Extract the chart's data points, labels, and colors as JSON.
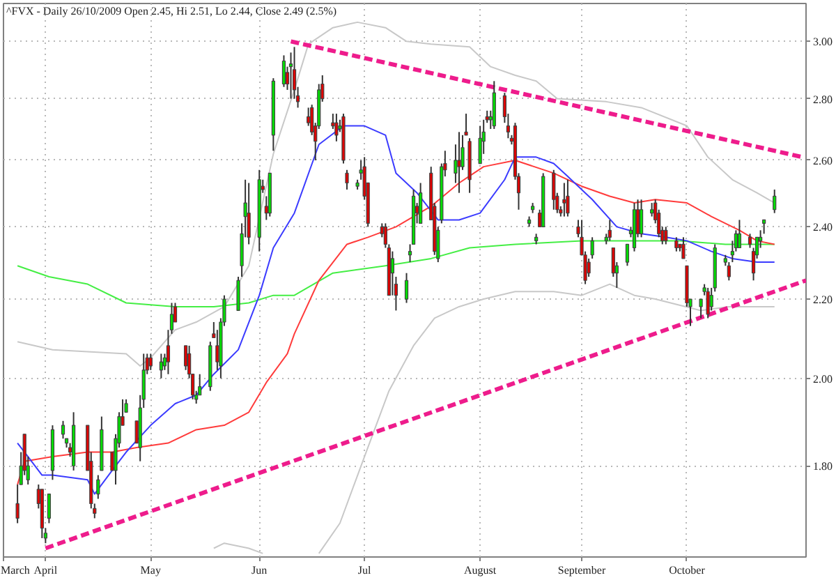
{
  "chart_data": {
    "type": "candlestick",
    "title": "^FVX - Daily 26/10/2009 Open 2.45, Hi 2.51, Lo 2.44, Close 2.49 (2.5%)",
    "x": [
      "2009-03-24",
      "2009-03-25",
      "2009-03-26",
      "2009-03-27",
      "2009-03-30",
      "2009-03-31",
      "2009-04-01",
      "2009-04-02",
      "2009-04-03",
      "2009-04-06",
      "2009-04-07",
      "2009-04-08",
      "2009-04-09",
      "2009-04-13",
      "2009-04-14",
      "2009-04-15",
      "2009-04-16",
      "2009-04-17",
      "2009-04-20",
      "2009-04-21",
      "2009-04-22",
      "2009-04-23",
      "2009-04-24",
      "2009-04-27",
      "2009-04-28",
      "2009-04-29",
      "2009-04-30",
      "2009-05-01",
      "2009-05-04",
      "2009-05-05",
      "2009-05-06",
      "2009-05-07",
      "2009-05-08",
      "2009-05-11",
      "2009-05-12",
      "2009-05-13",
      "2009-05-14",
      "2009-05-15",
      "2009-05-18",
      "2009-05-19",
      "2009-05-20",
      "2009-05-21",
      "2009-05-22",
      "2009-05-26",
      "2009-05-27",
      "2009-05-28",
      "2009-05-29",
      "2009-06-01",
      "2009-06-02",
      "2009-06-03",
      "2009-06-04",
      "2009-06-05",
      "2009-06-08",
      "2009-06-09",
      "2009-06-10",
      "2009-06-11",
      "2009-06-12",
      "2009-06-15",
      "2009-06-16",
      "2009-06-17",
      "2009-06-18",
      "2009-06-19",
      "2009-06-22",
      "2009-06-23",
      "2009-06-24",
      "2009-06-25",
      "2009-06-26",
      "2009-06-29",
      "2009-06-30",
      "2009-07-01",
      "2009-07-02",
      "2009-07-06",
      "2009-07-07",
      "2009-07-08",
      "2009-07-09",
      "2009-07-10",
      "2009-07-13",
      "2009-07-14",
      "2009-07-15",
      "2009-07-16",
      "2009-07-17",
      "2009-07-20",
      "2009-07-21",
      "2009-07-22",
      "2009-07-23",
      "2009-07-24",
      "2009-07-27",
      "2009-07-28",
      "2009-07-29",
      "2009-07-30",
      "2009-07-31",
      "2009-08-03",
      "2009-08-04",
      "2009-08-05",
      "2009-08-06",
      "2009-08-07",
      "2009-08-10",
      "2009-08-11",
      "2009-08-12",
      "2009-08-13",
      "2009-08-14",
      "2009-08-17",
      "2009-08-18",
      "2009-08-19",
      "2009-08-20",
      "2009-08-21",
      "2009-08-24",
      "2009-08-25",
      "2009-08-26",
      "2009-08-27",
      "2009-08-28",
      "2009-08-31",
      "2009-09-01",
      "2009-09-02",
      "2009-09-03",
      "2009-09-04",
      "2009-09-08",
      "2009-09-09",
      "2009-09-10",
      "2009-09-11",
      "2009-09-14",
      "2009-09-15",
      "2009-09-16",
      "2009-09-17",
      "2009-09-18",
      "2009-09-21",
      "2009-09-22",
      "2009-09-23",
      "2009-09-24",
      "2009-09-25",
      "2009-09-28",
      "2009-09-29",
      "2009-09-30",
      "2009-10-01",
      "2009-10-02",
      "2009-10-05",
      "2009-10-06",
      "2009-10-07",
      "2009-10-08",
      "2009-10-09",
      "2009-10-12",
      "2009-10-13",
      "2009-10-14",
      "2009-10-15",
      "2009-10-16",
      "2009-10-19",
      "2009-10-20",
      "2009-10-21",
      "2009-10-22",
      "2009-10-23",
      "2009-10-26"
    ],
    "ohlc": [
      [
        1.72,
        1.76,
        1.68,
        1.69
      ],
      [
        1.76,
        1.83,
        1.76,
        1.8
      ],
      [
        1.87,
        1.87,
        1.78,
        1.79
      ],
      [
        1.77,
        1.82,
        1.76,
        1.8
      ],
      [
        1.75,
        1.76,
        1.71,
        1.72
      ],
      [
        1.75,
        1.75,
        1.65,
        1.67
      ],
      [
        1.65,
        1.67,
        1.64,
        1.66
      ],
      [
        1.69,
        1.74,
        1.68,
        1.74
      ],
      [
        1.79,
        1.89,
        1.77,
        1.88
      ],
      [
        1.87,
        1.9,
        1.86,
        1.89
      ],
      [
        1.85,
        1.86,
        1.84,
        1.86
      ],
      [
        1.84,
        1.85,
        1.82,
        1.83
      ],
      [
        1.8,
        1.92,
        1.79,
        1.89
      ],
      [
        1.89,
        1.89,
        1.79,
        1.79
      ],
      [
        1.81,
        1.83,
        1.71,
        1.72
      ],
      [
        1.71,
        1.72,
        1.69,
        1.7
      ],
      [
        1.74,
        1.78,
        1.73,
        1.77
      ],
      [
        1.79,
        1.91,
        1.79,
        1.88
      ],
      [
        1.83,
        1.83,
        1.79,
        1.79
      ],
      [
        1.79,
        1.87,
        1.76,
        1.86
      ],
      [
        1.85,
        1.92,
        1.84,
        1.91
      ],
      [
        1.91,
        1.95,
        1.89,
        1.89
      ],
      [
        1.92,
        1.95,
        1.92,
        1.94
      ],
      [
        1.9,
        1.9,
        1.85,
        1.85
      ],
      [
        1.84,
        1.96,
        1.81,
        1.93
      ],
      [
        1.95,
        2.06,
        1.93,
        2.02
      ],
      [
        2.05,
        2.06,
        2.01,
        2.02
      ],
      [
        2.05,
        2.06,
        2.02,
        2.03
      ],
      [
        2.02,
        2.06,
        2.0,
        2.04
      ],
      [
        2.03,
        2.06,
        2.02,
        2.05
      ],
      [
        2.08,
        2.12,
        2.01,
        2.04
      ],
      [
        2.12,
        2.19,
        2.11,
        2.16
      ],
      [
        2.18,
        2.19,
        2.14,
        2.14
      ],
      [
        2.08,
        2.08,
        2.02,
        2.03
      ],
      [
        2.06,
        2.08,
        2.0,
        2.01
      ],
      [
        2.01,
        2.01,
        1.95,
        1.96
      ],
      [
        1.95,
        1.97,
        1.94,
        1.96
      ],
      [
        1.96,
        2.01,
        1.96,
        1.98
      ],
      [
        1.98,
        2.09,
        1.97,
        2.08
      ],
      [
        2.11,
        2.14,
        2.1,
        2.1
      ],
      [
        2.08,
        2.12,
        2.02,
        2.04
      ],
      [
        2.03,
        2.15,
        2.0,
        2.14
      ],
      [
        2.14,
        2.21,
        2.13,
        2.2
      ],
      [
        2.17,
        2.26,
        2.17,
        2.25
      ],
      [
        2.29,
        2.41,
        2.26,
        2.38
      ],
      [
        2.43,
        2.54,
        2.37,
        2.47
      ],
      [
        2.44,
        2.53,
        2.35,
        2.37
      ],
      [
        2.37,
        2.57,
        2.33,
        2.54
      ],
      [
        2.52,
        2.54,
        2.5,
        2.51
      ],
      [
        2.46,
        2.49,
        2.42,
        2.44
      ],
      [
        2.44,
        2.56,
        2.43,
        2.56
      ],
      [
        2.68,
        2.87,
        2.63,
        2.86
      ],
      [
        2.85,
        2.95,
        2.84,
        2.93
      ],
      [
        2.89,
        2.91,
        2.83,
        2.85
      ],
      [
        2.91,
        2.96,
        2.8,
        2.92
      ],
      [
        2.9,
        2.98,
        2.8,
        2.83
      ],
      [
        2.81,
        2.84,
        2.77,
        2.79
      ],
      [
        2.74,
        2.77,
        2.71,
        2.72
      ],
      [
        2.77,
        2.78,
        2.68,
        2.69
      ],
      [
        2.71,
        2.72,
        2.6,
        2.66
      ],
      [
        2.71,
        2.85,
        2.7,
        2.83
      ],
      [
        2.85,
        2.88,
        2.79,
        2.8
      ],
      [
        2.72,
        2.75,
        2.7,
        2.71
      ],
      [
        2.72,
        2.75,
        2.66,
        2.68
      ],
      [
        2.7,
        2.73,
        2.69,
        2.71
      ],
      [
        2.74,
        2.75,
        2.59,
        2.6
      ],
      [
        2.56,
        2.57,
        2.51,
        2.53
      ],
      [
        2.52,
        2.54,
        2.51,
        2.53
      ],
      [
        2.56,
        2.6,
        2.54,
        2.57
      ],
      [
        2.58,
        2.61,
        2.48,
        2.49
      ],
      [
        2.53,
        2.53,
        2.4,
        2.41
      ],
      [
        2.4,
        2.41,
        2.37,
        2.38
      ],
      [
        2.4,
        2.41,
        2.34,
        2.35
      ],
      [
        2.34,
        2.35,
        2.21,
        2.21
      ],
      [
        2.27,
        2.33,
        2.21,
        2.31
      ],
      [
        2.24,
        2.26,
        2.17,
        2.21
      ],
      [
        2.2,
        2.27,
        2.19,
        2.25
      ],
      [
        2.32,
        2.35,
        2.3,
        2.33
      ],
      [
        2.35,
        2.51,
        2.35,
        2.49
      ],
      [
        2.46,
        2.47,
        2.41,
        2.44
      ],
      [
        2.41,
        2.53,
        2.41,
        2.5
      ],
      [
        2.56,
        2.58,
        2.42,
        2.42
      ],
      [
        2.46,
        2.47,
        2.32,
        2.33
      ],
      [
        2.31,
        2.4,
        2.3,
        2.39
      ],
      [
        2.42,
        2.59,
        2.41,
        2.58
      ],
      [
        2.59,
        2.63,
        2.55,
        2.57
      ],
      [
        2.56,
        2.65,
        2.53,
        2.6
      ],
      [
        2.6,
        2.69,
        2.5,
        2.58
      ],
      [
        2.58,
        2.68,
        2.57,
        2.64
      ],
      [
        2.69,
        2.75,
        2.68,
        2.68
      ],
      [
        2.66,
        2.67,
        2.5,
        2.54
      ],
      [
        2.59,
        2.71,
        2.59,
        2.67
      ],
      [
        2.66,
        2.73,
        2.62,
        2.69
      ],
      [
        2.74,
        2.76,
        2.72,
        2.73
      ],
      [
        2.73,
        2.76,
        2.7,
        2.74
      ],
      [
        2.71,
        2.86,
        2.7,
        2.82
      ],
      [
        2.81,
        2.82,
        2.72,
        2.74
      ],
      [
        2.71,
        2.75,
        2.67,
        2.69
      ],
      [
        2.67,
        2.68,
        2.65,
        2.66
      ],
      [
        2.71,
        2.72,
        2.54,
        2.55
      ],
      [
        2.55,
        2.56,
        2.45,
        2.5
      ],
      [
        2.41,
        2.43,
        2.4,
        2.42
      ],
      [
        2.45,
        2.47,
        2.44,
        2.46
      ],
      [
        2.36,
        2.38,
        2.35,
        2.37
      ],
      [
        2.44,
        2.45,
        2.4,
        2.4
      ],
      [
        2.4,
        2.56,
        2.4,
        2.55
      ],
      [
        2.56,
        2.57,
        2.45,
        2.48
      ],
      [
        2.49,
        2.5,
        2.44,
        2.45
      ],
      [
        2.45,
        2.46,
        2.43,
        2.44
      ],
      [
        2.48,
        2.53,
        2.43,
        2.47
      ],
      [
        2.49,
        2.54,
        2.43,
        2.44
      ],
      [
        2.4,
        2.42,
        2.37,
        2.38
      ],
      [
        2.37,
        2.42,
        2.32,
        2.32
      ],
      [
        2.32,
        2.33,
        2.24,
        2.25
      ],
      [
        2.3,
        2.31,
        2.26,
        2.27
      ],
      [
        2.32,
        2.37,
        2.31,
        2.36
      ],
      [
        2.36,
        2.38,
        2.35,
        2.37
      ],
      [
        2.39,
        2.42,
        2.36,
        2.37
      ],
      [
        2.34,
        2.34,
        2.26,
        2.27
      ],
      [
        2.27,
        2.3,
        2.23,
        2.29
      ],
      [
        2.3,
        2.35,
        2.29,
        2.35
      ],
      [
        2.38,
        2.4,
        2.37,
        2.39
      ],
      [
        2.34,
        2.47,
        2.33,
        2.45
      ],
      [
        2.45,
        2.48,
        2.37,
        2.38
      ],
      [
        2.38,
        2.48,
        2.37,
        2.45
      ],
      [
        2.44,
        2.47,
        2.43,
        2.45
      ],
      [
        2.47,
        2.48,
        2.41,
        2.42
      ],
      [
        2.44,
        2.45,
        2.37,
        2.38
      ],
      [
        2.39,
        2.4,
        2.35,
        2.36
      ],
      [
        2.39,
        2.4,
        2.35,
        2.36
      ],
      [
        2.36,
        2.37,
        2.33,
        2.34
      ],
      [
        2.35,
        2.35,
        2.33,
        2.34
      ],
      [
        2.35,
        2.37,
        2.31,
        2.31
      ],
      [
        2.29,
        2.29,
        2.18,
        2.19
      ],
      [
        2.18,
        2.2,
        2.13,
        2.2
      ],
      [
        2.18,
        2.2,
        2.15,
        2.2
      ],
      [
        2.22,
        2.24,
        2.21,
        2.23
      ],
      [
        2.22,
        2.23,
        2.15,
        2.16
      ],
      [
        2.18,
        2.23,
        2.17,
        2.21
      ],
      [
        2.23,
        2.35,
        2.22,
        2.34
      ],
      [
        2.3,
        2.32,
        2.29,
        2.31
      ],
      [
        2.29,
        2.3,
        2.25,
        2.26
      ],
      [
        2.32,
        2.36,
        2.3,
        2.33
      ],
      [
        2.34,
        2.39,
        2.33,
        2.38
      ],
      [
        2.34,
        2.42,
        2.34,
        2.38
      ],
      [
        2.37,
        2.38,
        2.34,
        2.35
      ],
      [
        2.33,
        2.34,
        2.25,
        2.27
      ],
      [
        2.32,
        2.37,
        2.31,
        2.37
      ],
      [
        2.36,
        2.39,
        2.34,
        2.37
      ],
      [
        2.41,
        2.42,
        2.38,
        2.42
      ],
      [
        2.45,
        2.51,
        2.44,
        2.49
      ]
    ],
    "colors": [
      "#e00000",
      "#00e000",
      "#e00000",
      "#00e000",
      "#e00000",
      "#e00000",
      "#00e000",
      "#00e000",
      "#00e000",
      "#00e000",
      "#00e000",
      "#e00000",
      "#00e000",
      "#e00000",
      "#e00000",
      "#e00000",
      "#00e000",
      "#00e000",
      "#e00000",
      "#00e000",
      "#00e000",
      "#e00000",
      "#00e000",
      "#e00000",
      "#00e000",
      "#00e000",
      "#e00000",
      "#e00000",
      "#00e000",
      "#00e000",
      "#e00000",
      "#00e000",
      "#e00000",
      "#e00000",
      "#e00000",
      "#e00000",
      "#00e000",
      "#00e000",
      "#00e000",
      "#e00000",
      "#e00000",
      "#00e000",
      "#00e000",
      "#00e000",
      "#00e000",
      "#00e000",
      "#e00000",
      "#00e000",
      "#e00000",
      "#e00000",
      "#00e000",
      "#00e000",
      "#00e000",
      "#e00000",
      "#00e000",
      "#e00000",
      "#e00000",
      "#e00000",
      "#e00000",
      "#e00000",
      "#00e000",
      "#e00000",
      "#e00000",
      "#e00000",
      "#00e000",
      "#e00000",
      "#e00000",
      "#00e000",
      "#00e000",
      "#e00000",
      "#e00000",
      "#e00000",
      "#e00000",
      "#e00000",
      "#00e000",
      "#e00000",
      "#00e000",
      "#00e000",
      "#00e000",
      "#e00000",
      "#00e000",
      "#e00000",
      "#e00000",
      "#00e000",
      "#00e000",
      "#e00000",
      "#00e000",
      "#e00000",
      "#00e000",
      "#e00000",
      "#e00000",
      "#00e000",
      "#00e000",
      "#e00000",
      "#00e000",
      "#00e000",
      "#e00000",
      "#e00000",
      "#e00000",
      "#e00000",
      "#e00000",
      "#00e000",
      "#00e000",
      "#00e000",
      "#e00000",
      "#00e000",
      "#e00000",
      "#e00000",
      "#e00000",
      "#e00000",
      "#e00000",
      "#e00000",
      "#e00000",
      "#e00000",
      "#e00000",
      "#00e000",
      "#00e000",
      "#e00000",
      "#e00000",
      "#00e000",
      "#00e000",
      "#00e000",
      "#00e000",
      "#e00000",
      "#00e000",
      "#00e000",
      "#e00000",
      "#e00000",
      "#e00000",
      "#e00000",
      "#e00000",
      "#e00000",
      "#e00000",
      "#e00000",
      "#00e000",
      "#00e000",
      "#00e000",
      "#e00000",
      "#00e000",
      "#00e000",
      "#00e000",
      "#e00000",
      "#00e000",
      "#00e000",
      "#00e000",
      "#e00000",
      "#e00000",
      "#00e000",
      "#00e000",
      "#00e000",
      "#00e000"
    ],
    "series": [
      {
        "type": "line",
        "color": "#c8c8c8",
        "x": [
          "2009-03-24",
          "2009-04-03",
          "2009-04-24",
          "2009-04-28",
          "2009-05-01",
          "2009-05-08",
          "2009-05-14",
          "2009-05-22",
          "2009-05-29",
          "2009-06-05",
          "2009-06-11",
          "2009-06-15",
          "2009-06-22",
          "2009-06-29",
          "2009-07-07",
          "2009-07-13",
          "2009-07-20",
          "2009-07-31",
          "2009-08-06",
          "2009-08-13",
          "2009-08-19",
          "2009-08-25",
          "2009-09-08",
          "2009-09-18",
          "2009-10-01",
          "2009-10-07",
          "2009-10-14",
          "2009-10-21",
          "2009-10-26"
        ],
        "values": [
          2.09,
          2.07,
          2.06,
          2.03,
          2.05,
          2.12,
          2.14,
          2.18,
          2.29,
          2.62,
          2.83,
          2.99,
          3.05,
          3.07,
          3.05,
          3.0,
          2.99,
          2.98,
          2.91,
          2.88,
          2.86,
          2.8,
          2.79,
          2.77,
          2.71,
          2.61,
          2.54,
          2.5,
          2.47
        ]
      },
      {
        "type": "line",
        "color": "#c8c8c8",
        "x": [
          "2009-05-19",
          "2009-05-22",
          "2009-05-29",
          "2009-06-02",
          "2009-06-10",
          "2009-06-18",
          "2009-06-24",
          "2009-07-01",
          "2009-07-08",
          "2009-07-15",
          "2009-07-21",
          "2009-07-28",
          "2009-08-04",
          "2009-08-13",
          "2009-08-24",
          "2009-09-01",
          "2009-09-09",
          "2009-09-16",
          "2009-09-22",
          "2009-10-05",
          "2009-10-13",
          "2009-10-26"
        ],
        "values": [
          1.63,
          1.64,
          1.63,
          1.62,
          null,
          1.62,
          1.68,
          1.82,
          1.97,
          2.08,
          2.15,
          2.18,
          2.2,
          2.22,
          2.22,
          2.21,
          2.24,
          2.21,
          2.2,
          2.17,
          2.18,
          2.18
        ]
      },
      {
        "type": "line",
        "color": "#44ee44",
        "x": [
          "2009-03-24",
          "2009-04-02",
          "2009-04-13",
          "2009-04-24",
          "2009-05-08",
          "2009-05-19",
          "2009-05-29",
          "2009-06-05",
          "2009-06-11",
          "2009-06-22",
          "2009-07-07",
          "2009-07-20",
          "2009-07-31",
          "2009-08-13",
          "2009-09-01",
          "2009-09-16",
          "2009-09-29",
          "2009-10-12",
          "2009-10-26"
        ],
        "values": [
          2.29,
          2.26,
          2.24,
          2.19,
          2.18,
          2.18,
          2.19,
          2.21,
          2.21,
          2.27,
          2.29,
          2.31,
          2.34,
          2.35,
          2.36,
          2.36,
          2.36,
          2.35,
          2.35
        ]
      },
      {
        "type": "line",
        "color": "#ff3b3b",
        "x": [
          "2009-03-24",
          "2009-03-26",
          "2009-04-03",
          "2009-04-13",
          "2009-04-20",
          "2009-04-27",
          "2009-05-06",
          "2009-05-14",
          "2009-05-22",
          "2009-05-29",
          "2009-06-03",
          "2009-06-09",
          "2009-06-11",
          "2009-06-18",
          "2009-06-26",
          "2009-07-02",
          "2009-07-10",
          "2009-07-20",
          "2009-07-28",
          "2009-08-04",
          "2009-08-13",
          "2009-08-24",
          "2009-09-01",
          "2009-09-09",
          "2009-09-16",
          "2009-09-22",
          "2009-10-01",
          "2009-10-08",
          "2009-10-16",
          "2009-10-21",
          "2009-10-26"
        ],
        "values": [
          1.76,
          1.81,
          1.82,
          1.83,
          1.83,
          1.84,
          1.85,
          1.88,
          1.89,
          1.92,
          1.99,
          2.06,
          2.11,
          2.25,
          2.35,
          2.37,
          2.4,
          2.46,
          2.53,
          2.58,
          2.6,
          2.56,
          2.52,
          2.49,
          2.47,
          2.48,
          2.47,
          2.43,
          2.39,
          2.36,
          2.35
        ]
      },
      {
        "type": "line",
        "color": "#3b3bff",
        "x": [
          "2009-03-24",
          "2009-03-27",
          "2009-03-31",
          "2009-04-03",
          "2009-04-13",
          "2009-04-15",
          "2009-04-20",
          "2009-04-24",
          "2009-05-01",
          "2009-05-08",
          "2009-05-14",
          "2009-05-19",
          "2009-05-26",
          "2009-06-01",
          "2009-06-05",
          "2009-06-11",
          "2009-06-18",
          "2009-06-25",
          "2009-07-01",
          "2009-07-07",
          "2009-07-10",
          "2009-07-16",
          "2009-07-22",
          "2009-07-28",
          "2009-08-03",
          "2009-08-10",
          "2009-08-13",
          "2009-08-19",
          "2009-08-24",
          "2009-08-28",
          "2009-09-04",
          "2009-09-11",
          "2009-09-18",
          "2009-09-25",
          "2009-10-01",
          "2009-10-08",
          "2009-10-14",
          "2009-10-21",
          "2009-10-26"
        ],
        "values": [
          1.85,
          1.82,
          1.78,
          1.78,
          1.77,
          1.74,
          1.79,
          1.83,
          1.89,
          1.94,
          1.96,
          2.01,
          2.07,
          2.21,
          2.34,
          2.44,
          2.65,
          2.71,
          2.71,
          2.68,
          2.56,
          2.5,
          2.42,
          2.42,
          2.44,
          2.54,
          2.61,
          2.61,
          2.59,
          2.55,
          2.48,
          2.4,
          2.38,
          2.37,
          2.36,
          2.33,
          2.31,
          2.3,
          2.3
        ]
      },
      {
        "type": "line",
        "color": "#ee1c8c",
        "line_style": "dashed",
        "x": [
          "2009-04-01",
          "2009-11-04"
        ],
        "values": [
          1.63,
          2.25
        ]
      },
      {
        "type": "line",
        "color": "#ee1c8c",
        "line_style": "dashed",
        "x": [
          "2009-06-10",
          "2009-11-03"
        ],
        "values": [
          3.0,
          2.61
        ]
      }
    ],
    "xlim": [
      "2009-03-20",
      "2009-11-04"
    ],
    "xticks": [
      {
        "value": "2009-03-20",
        "label": "March"
      },
      {
        "value": "2009-04-01",
        "label": "April"
      },
      {
        "value": "2009-05-01",
        "label": "May"
      },
      {
        "value": "2009-06-01",
        "label": "Jun"
      },
      {
        "value": "2009-07-01",
        "label": "Jul"
      },
      {
        "value": "2009-08-03",
        "label": "August"
      },
      {
        "value": "2009-09-01",
        "label": "September"
      },
      {
        "value": "2009-10-01",
        "label": "October"
      }
    ],
    "ylim": [
      1.613,
      3.14
    ],
    "yticks": [
      {
        "value": 1.8,
        "label": "1.80"
      },
      {
        "value": 2.0,
        "label": "2.00"
      },
      {
        "value": 2.2,
        "label": "2.20"
      },
      {
        "value": 2.4,
        "label": "2.40"
      },
      {
        "value": 2.6,
        "label": "2.60"
      },
      {
        "value": 2.8,
        "label": "2.80"
      },
      {
        "value": 3.0,
        "label": "3.00"
      }
    ],
    "log": true,
    "grid": true
  }
}
